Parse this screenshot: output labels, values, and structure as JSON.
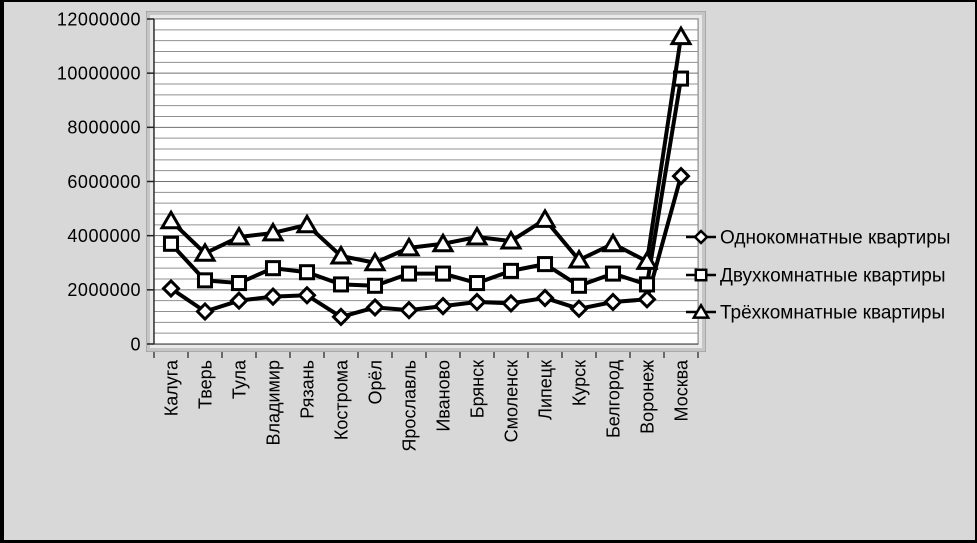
{
  "chart_data": {
    "type": "line",
    "title": "",
    "xlabel": "",
    "ylabel": "",
    "categories": [
      "Калуга",
      "Тверь",
      "Тула",
      "Владимир",
      "Рязань",
      "Кострома",
      "Орёл",
      "Ярославль",
      "Иваново",
      "Брянск",
      "Смоленск",
      "Липецк",
      "Курск",
      "Белгород",
      "Воронеж",
      "Москва"
    ],
    "series": [
      {
        "name": "Однокомнатные квартиры",
        "marker": "diamond",
        "values": [
          2050000,
          1200000,
          1600000,
          1750000,
          1800000,
          1000000,
          1350000,
          1250000,
          1400000,
          1550000,
          1500000,
          1700000,
          1300000,
          1550000,
          1650000,
          6200000
        ]
      },
      {
        "name": "Двухкомнатные квартиры",
        "marker": "square",
        "values": [
          3700000,
          2350000,
          2250000,
          2800000,
          2650000,
          2200000,
          2150000,
          2600000,
          2600000,
          2250000,
          2700000,
          2950000,
          2150000,
          2600000,
          2200000,
          9800000
        ]
      },
      {
        "name": "Трёхкомнатные квартиры",
        "marker": "triangle",
        "values": [
          4550000,
          3350000,
          3950000,
          4100000,
          4400000,
          3250000,
          3000000,
          3550000,
          3700000,
          3950000,
          3800000,
          4600000,
          3100000,
          3700000,
          3050000,
          11350000
        ]
      }
    ],
    "ylim": [
      0,
      12000000
    ],
    "ytick_step": 2000000,
    "minor_grid_step": 400000,
    "yticks": [
      "0",
      "2000000",
      "4000000",
      "6000000",
      "8000000",
      "10000000",
      "12000000"
    ],
    "grid": "on",
    "legend_position": "right",
    "colors": {
      "series_line": "#000000",
      "marker_fill": "#ffffff",
      "plot_background": "#ffffff",
      "chart_background": "#d8d8d8",
      "gridline_minor": "#909090",
      "gridline_major": "#707070"
    }
  }
}
